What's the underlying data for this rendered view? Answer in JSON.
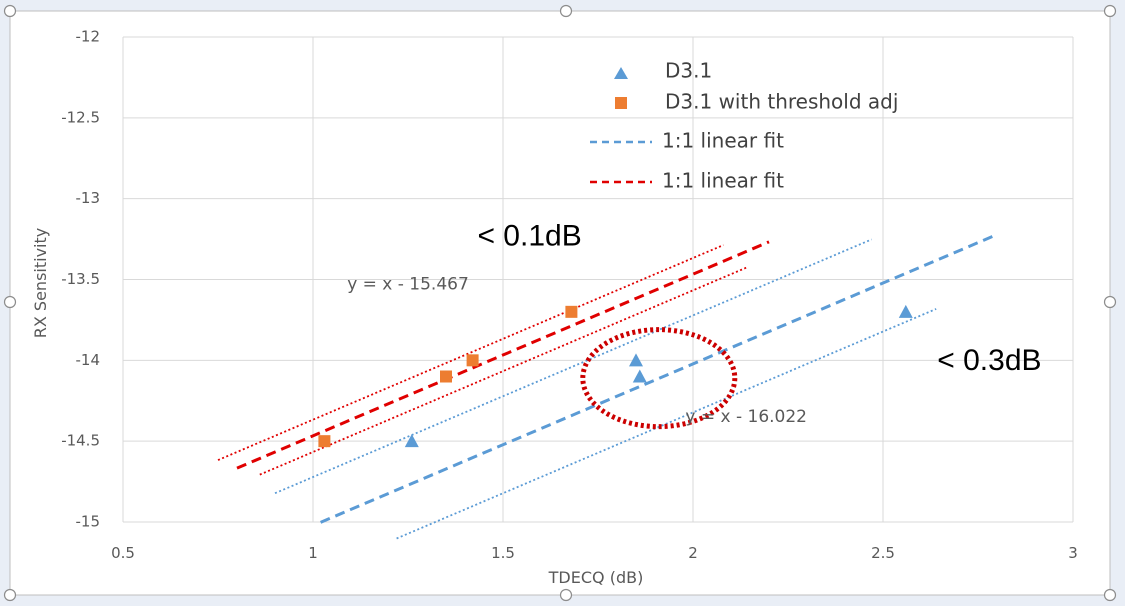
{
  "chart_data": {
    "type": "scatter",
    "xlabel": "TDECQ (dB)",
    "ylabel": "RX Sensitivity",
    "xlim": [
      0.5,
      3
    ],
    "ylim": [
      -15,
      -12
    ],
    "x_ticks": [
      "0.5",
      "1",
      "1.5",
      "2",
      "2.5",
      "3"
    ],
    "y_ticks": [
      "-12",
      "-12.5",
      "-13",
      "-13.5",
      "-14",
      "-14.5",
      "-15"
    ],
    "grid": true,
    "legend_position": "top-right",
    "series": [
      {
        "name": "D3.1",
        "marker": "triangle",
        "color": "#5b9bd5",
        "points": [
          [
            1.26,
            -14.5
          ],
          [
            1.85,
            -14.0
          ],
          [
            1.86,
            -14.1
          ],
          [
            2.56,
            -13.7
          ]
        ]
      },
      {
        "name": "D3.1 with threshold adj",
        "marker": "square",
        "color": "#ed7d31",
        "points": [
          [
            1.03,
            -14.5
          ],
          [
            1.35,
            -14.1
          ],
          [
            1.42,
            -14.0
          ],
          [
            1.68,
            -13.7
          ]
        ]
      }
    ],
    "fits": [
      {
        "name": "1:1 linear fit",
        "equation": "y = x - 16.022",
        "slope": 1,
        "intercept": -16.022,
        "x_range": [
          1.02,
          2.79
        ],
        "color": "#5b9bd5",
        "band": 0.3,
        "band_ranges": [
          [
            0.9,
            2.47
          ],
          [
            1.22,
            2.64
          ]
        ]
      },
      {
        "name": "1:1 linear fit",
        "equation": "y = x - 15.467",
        "slope": 1,
        "intercept": -15.467,
        "x_range": [
          0.8,
          2.2
        ],
        "color": "#e00000",
        "band": 0.1,
        "band_ranges": [
          [
            0.75,
            2.08
          ],
          [
            0.86,
            2.14
          ]
        ]
      }
    ],
    "annotations": [
      {
        "text": "< 0.1dB",
        "x": 1.57,
        "y": -13.24
      },
      {
        "text": "< 0.3dB",
        "x": 2.78,
        "y": -14.01
      }
    ],
    "highlight_ellipse": {
      "cx": 1.91,
      "cy": -14.11,
      "rx": 0.2,
      "ry": 0.3,
      "color": "#cc0000"
    }
  }
}
